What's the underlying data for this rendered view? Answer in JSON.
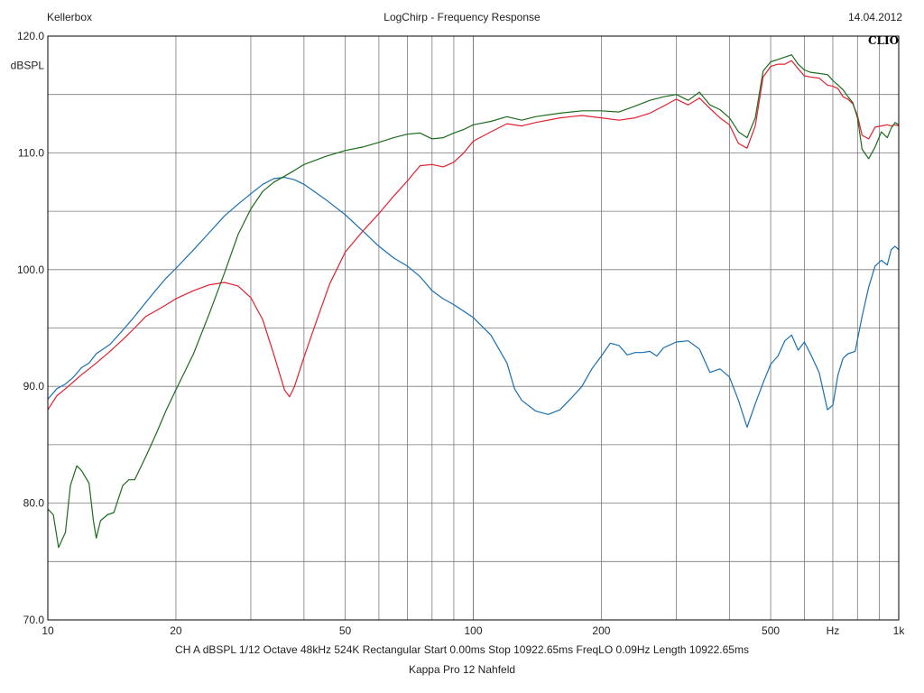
{
  "header": {
    "left": "Kellerbox",
    "center": "LogChirp - Frequency Response",
    "right": "14.04.2012"
  },
  "logo_text": "CLIO",
  "footer": {
    "settings": "CH A   dBSPL   1/12 Octave   48kHz   524K   Rectangular   Start 0.00ms   Stop 10922.65ms   FreqLO 0.09Hz   Length 10922.65ms",
    "subtitle": "Kappa Pro 12 Nahfeld"
  },
  "colors": {
    "grid": "#7a7a7a",
    "axis": "#000000",
    "background": "#ffffff"
  },
  "chart_data": {
    "type": "line",
    "title": "LogChirp - Frequency Response",
    "xlabel": "Hz",
    "ylabel": "dBSPL",
    "x_scale": "log",
    "xlim": [
      10,
      1000
    ],
    "ylim": [
      70,
      120
    ],
    "y_ticks": [
      {
        "value": 120,
        "label": "120.0"
      },
      {
        "value": 110,
        "label": "110.0"
      },
      {
        "value": 100,
        "label": "100.0"
      },
      {
        "value": 90,
        "label": "90.0"
      },
      {
        "value": 80,
        "label": "80.0"
      },
      {
        "value": 70,
        "label": "70.0"
      }
    ],
    "y_minor_step": 5,
    "x_ticks": [
      {
        "value": 10,
        "label": "10"
      },
      {
        "value": 20,
        "label": "20"
      },
      {
        "value": 50,
        "label": "50"
      },
      {
        "value": 100,
        "label": "100"
      },
      {
        "value": 200,
        "label": "200"
      },
      {
        "value": 500,
        "label": "500"
      },
      {
        "value": 700,
        "label": "Hz"
      },
      {
        "value": 1000,
        "label": "1k"
      }
    ],
    "grid": true,
    "series": [
      {
        "color": "#1a6fb0",
        "points": [
          [
            10,
            88.9
          ],
          [
            10.5,
            89.8
          ],
          [
            11,
            90.2
          ],
          [
            11.5,
            90.8
          ],
          [
            12,
            91.6
          ],
          [
            12.5,
            92.0
          ],
          [
            13,
            92.8
          ],
          [
            14,
            93.6
          ],
          [
            15,
            94.8
          ],
          [
            16,
            96.0
          ],
          [
            17,
            97.2
          ],
          [
            18,
            98.3
          ],
          [
            19,
            99.3
          ],
          [
            20,
            100.1
          ],
          [
            22,
            101.7
          ],
          [
            24,
            103.2
          ],
          [
            26,
            104.6
          ],
          [
            28,
            105.6
          ],
          [
            30,
            106.5
          ],
          [
            32,
            107.3
          ],
          [
            34,
            107.8
          ],
          [
            36,
            107.9
          ],
          [
            38,
            107.7
          ],
          [
            40,
            107.3
          ],
          [
            45,
            106.0
          ],
          [
            50,
            104.7
          ],
          [
            55,
            103.3
          ],
          [
            60,
            102.0
          ],
          [
            65,
            101.0
          ],
          [
            70,
            100.3
          ],
          [
            75,
            99.4
          ],
          [
            80,
            98.2
          ],
          [
            85,
            97.5
          ],
          [
            90,
            97.0
          ],
          [
            100,
            95.9
          ],
          [
            110,
            94.4
          ],
          [
            120,
            92.0
          ],
          [
            125,
            89.8
          ],
          [
            130,
            88.8
          ],
          [
            140,
            87.9
          ],
          [
            150,
            87.6
          ],
          [
            160,
            88.0
          ],
          [
            170,
            89.0
          ],
          [
            180,
            90.0
          ],
          [
            190,
            91.5
          ],
          [
            200,
            92.6
          ],
          [
            210,
            93.7
          ],
          [
            220,
            93.5
          ],
          [
            230,
            92.7
          ],
          [
            240,
            92.9
          ],
          [
            250,
            92.9
          ],
          [
            260,
            93.0
          ],
          [
            270,
            92.6
          ],
          [
            280,
            93.3
          ],
          [
            300,
            93.8
          ],
          [
            320,
            93.9
          ],
          [
            340,
            93.2
          ],
          [
            360,
            91.2
          ],
          [
            380,
            91.5
          ],
          [
            400,
            90.8
          ],
          [
            420,
            88.8
          ],
          [
            440,
            86.5
          ],
          [
            460,
            88.5
          ],
          [
            480,
            90.3
          ],
          [
            500,
            91.9
          ],
          [
            520,
            92.6
          ],
          [
            540,
            93.9
          ],
          [
            560,
            94.4
          ],
          [
            580,
            93.1
          ],
          [
            600,
            93.8
          ],
          [
            620,
            92.8
          ],
          [
            650,
            91.2
          ],
          [
            680,
            88.0
          ],
          [
            700,
            88.4
          ],
          [
            720,
            91.0
          ],
          [
            740,
            92.4
          ],
          [
            760,
            92.8
          ],
          [
            790,
            93.0
          ],
          [
            820,
            96.0
          ],
          [
            850,
            98.5
          ],
          [
            880,
            100.3
          ],
          [
            910,
            100.8
          ],
          [
            940,
            100.4
          ],
          [
            960,
            101.7
          ],
          [
            980,
            102.0
          ],
          [
            1000,
            101.7
          ]
        ]
      },
      {
        "color": "#e02030",
        "points": [
          [
            10,
            88.0
          ],
          [
            10.5,
            89.2
          ],
          [
            11,
            89.8
          ],
          [
            11.5,
            90.4
          ],
          [
            12,
            91.0
          ],
          [
            12.5,
            91.5
          ],
          [
            13,
            92.0
          ],
          [
            14,
            93.0
          ],
          [
            15,
            94.0
          ],
          [
            16,
            95.0
          ],
          [
            17,
            96.0
          ],
          [
            18,
            96.5
          ],
          [
            19,
            97.0
          ],
          [
            20,
            97.5
          ],
          [
            22,
            98.2
          ],
          [
            24,
            98.7
          ],
          [
            26,
            98.9
          ],
          [
            28,
            98.6
          ],
          [
            30,
            97.6
          ],
          [
            32,
            95.7
          ],
          [
            34,
            92.7
          ],
          [
            36,
            89.7
          ],
          [
            37,
            89.1
          ],
          [
            38,
            90.0
          ],
          [
            40,
            92.5
          ],
          [
            43,
            95.8
          ],
          [
            46,
            98.8
          ],
          [
            50,
            101.5
          ],
          [
            55,
            103.3
          ],
          [
            60,
            104.8
          ],
          [
            65,
            106.3
          ],
          [
            70,
            107.6
          ],
          [
            75,
            108.9
          ],
          [
            80,
            109.0
          ],
          [
            85,
            108.8
          ],
          [
            90,
            109.2
          ],
          [
            95,
            110.0
          ],
          [
            100,
            111.0
          ],
          [
            110,
            111.8
          ],
          [
            120,
            112.5
          ],
          [
            130,
            112.3
          ],
          [
            140,
            112.6
          ],
          [
            160,
            113.0
          ],
          [
            180,
            113.2
          ],
          [
            200,
            113.0
          ],
          [
            220,
            112.8
          ],
          [
            240,
            113.0
          ],
          [
            260,
            113.4
          ],
          [
            280,
            114.0
          ],
          [
            300,
            114.6
          ],
          [
            320,
            114.1
          ],
          [
            340,
            114.7
          ],
          [
            360,
            113.8
          ],
          [
            380,
            113.0
          ],
          [
            400,
            112.4
          ],
          [
            420,
            110.8
          ],
          [
            440,
            110.4
          ],
          [
            460,
            112.3
          ],
          [
            480,
            116.5
          ],
          [
            500,
            117.4
          ],
          [
            520,
            117.6
          ],
          [
            540,
            117.6
          ],
          [
            560,
            117.9
          ],
          [
            580,
            117.2
          ],
          [
            600,
            116.6
          ],
          [
            620,
            116.5
          ],
          [
            650,
            116.4
          ],
          [
            680,
            115.8
          ],
          [
            700,
            115.7
          ],
          [
            720,
            115.5
          ],
          [
            740,
            114.8
          ],
          [
            760,
            114.6
          ],
          [
            780,
            114.2
          ],
          [
            800,
            113.2
          ],
          [
            820,
            111.5
          ],
          [
            850,
            111.2
          ],
          [
            880,
            112.2
          ],
          [
            910,
            112.3
          ],
          [
            940,
            112.4
          ],
          [
            960,
            112.3
          ],
          [
            980,
            112.4
          ],
          [
            1000,
            112.3
          ]
        ]
      },
      {
        "color": "#1d6b1d",
        "points": [
          [
            10,
            79.5
          ],
          [
            10.3,
            79.0
          ],
          [
            10.6,
            76.2
          ],
          [
            11,
            77.5
          ],
          [
            11.3,
            81.5
          ],
          [
            11.7,
            83.2
          ],
          [
            12,
            82.8
          ],
          [
            12.5,
            81.7
          ],
          [
            12.8,
            78.5
          ],
          [
            13,
            77.0
          ],
          [
            13.3,
            78.5
          ],
          [
            13.8,
            79.0
          ],
          [
            14.3,
            79.2
          ],
          [
            15,
            81.5
          ],
          [
            15.5,
            82.0
          ],
          [
            16,
            82.0
          ],
          [
            17,
            84.0
          ],
          [
            18,
            86.0
          ],
          [
            19,
            88.0
          ],
          [
            20,
            89.7
          ],
          [
            22,
            92.8
          ],
          [
            24,
            96.3
          ],
          [
            26,
            99.7
          ],
          [
            28,
            103.0
          ],
          [
            30,
            105.2
          ],
          [
            32,
            106.7
          ],
          [
            34,
            107.5
          ],
          [
            36,
            108.0
          ],
          [
            38,
            108.5
          ],
          [
            40,
            109.0
          ],
          [
            45,
            109.7
          ],
          [
            50,
            110.2
          ],
          [
            55,
            110.5
          ],
          [
            60,
            110.9
          ],
          [
            65,
            111.3
          ],
          [
            70,
            111.6
          ],
          [
            75,
            111.7
          ],
          [
            80,
            111.2
          ],
          [
            85,
            111.3
          ],
          [
            90,
            111.7
          ],
          [
            95,
            112.0
          ],
          [
            100,
            112.4
          ],
          [
            110,
            112.7
          ],
          [
            120,
            113.1
          ],
          [
            130,
            112.8
          ],
          [
            140,
            113.1
          ],
          [
            160,
            113.4
          ],
          [
            180,
            113.6
          ],
          [
            200,
            113.6
          ],
          [
            220,
            113.5
          ],
          [
            240,
            114.0
          ],
          [
            260,
            114.5
          ],
          [
            280,
            114.8
          ],
          [
            300,
            115.0
          ],
          [
            320,
            114.5
          ],
          [
            340,
            115.2
          ],
          [
            360,
            114.1
          ],
          [
            380,
            113.7
          ],
          [
            400,
            113.0
          ],
          [
            420,
            111.8
          ],
          [
            440,
            111.3
          ],
          [
            460,
            113.0
          ],
          [
            480,
            117.0
          ],
          [
            500,
            117.8
          ],
          [
            520,
            118.0
          ],
          [
            540,
            118.2
          ],
          [
            560,
            118.4
          ],
          [
            580,
            117.6
          ],
          [
            600,
            117.1
          ],
          [
            620,
            116.9
          ],
          [
            650,
            116.8
          ],
          [
            680,
            116.7
          ],
          [
            700,
            116.2
          ],
          [
            720,
            115.8
          ],
          [
            740,
            115.4
          ],
          [
            760,
            114.8
          ],
          [
            780,
            114.3
          ],
          [
            800,
            113.0
          ],
          [
            820,
            110.3
          ],
          [
            850,
            109.5
          ],
          [
            880,
            110.5
          ],
          [
            910,
            111.8
          ],
          [
            940,
            111.3
          ],
          [
            960,
            112.1
          ],
          [
            980,
            112.6
          ],
          [
            1000,
            112.4
          ]
        ]
      }
    ]
  }
}
